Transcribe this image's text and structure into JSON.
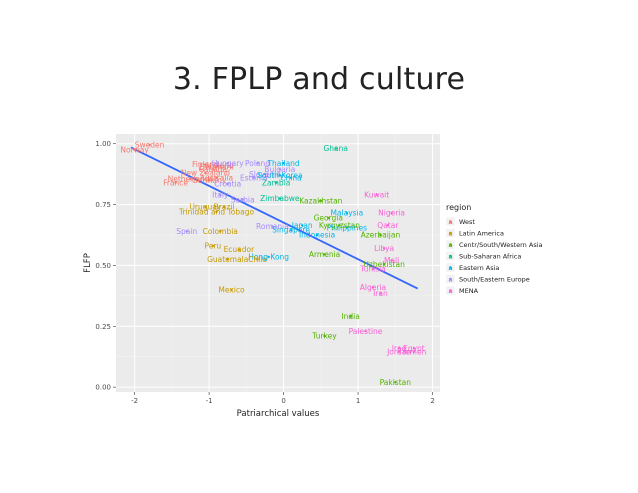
{
  "slide": {
    "title": "3. FPLP and culture"
  },
  "chart_data": {
    "type": "scatter",
    "xlabel": "Patriarchical values",
    "ylabel": "FLFP",
    "xlim": [
      -2.25,
      2.1
    ],
    "ylim": [
      -0.02,
      1.04
    ],
    "x_ticks": [
      -2,
      -1,
      0,
      1,
      2
    ],
    "y_ticks": [
      0.0,
      0.25,
      0.5,
      0.75,
      1.0
    ],
    "x_tick_labels": [
      "-2",
      "-1",
      "0",
      "1",
      "2"
    ],
    "y_tick_labels": [
      "0.00",
      "0.25",
      "0.50",
      "0.75",
      "1.00"
    ],
    "grid": true,
    "background": "#ebebeb",
    "legend": {
      "title": "region",
      "position": "right",
      "entries": [
        {
          "name": "West",
          "color": "#F8766D"
        },
        {
          "name": "Latin America",
          "color": "#C49A00"
        },
        {
          "name": "Centr/South/Western Asia",
          "color": "#53B400"
        },
        {
          "name": "Sub-Saharan Africa",
          "color": "#00C094"
        },
        {
          "name": "Eastern Asia",
          "color": "#00B6EB"
        },
        {
          "name": "South/Eastern Europe",
          "color": "#A58AFF"
        },
        {
          "name": "MENA",
          "color": "#FB61D7"
        }
      ]
    },
    "trend_line": {
      "x": [
        -2.05,
        1.8
      ],
      "y": [
        0.985,
        0.405
      ],
      "color": "#3366FF"
    },
    "points": [
      {
        "label": "Sweden",
        "region": "West",
        "x": -1.8,
        "y": 0.995
      },
      {
        "label": "Norway",
        "region": "West",
        "x": -2.0,
        "y": 0.975
      },
      {
        "label": "Finland",
        "region": "West",
        "x": -1.05,
        "y": 0.915
      },
      {
        "label": "Iceland",
        "region": "West",
        "x": -0.85,
        "y": 0.91
      },
      {
        "label": "Denmark",
        "region": "West",
        "x": -0.9,
        "y": 0.905
      },
      {
        "label": "Canada",
        "region": "West",
        "x": -0.95,
        "y": 0.895
      },
      {
        "label": "New Zealand",
        "region": "West",
        "x": -1.05,
        "y": 0.88
      },
      {
        "label": "Netherlands",
        "region": "West",
        "x": -1.25,
        "y": 0.855
      },
      {
        "label": "Australia",
        "region": "West",
        "x": -0.9,
        "y": 0.86
      },
      {
        "label": "Germany",
        "region": "West",
        "x": -1.0,
        "y": 0.85
      },
      {
        "label": "France",
        "region": "West",
        "x": -1.45,
        "y": 0.84
      },
      {
        "label": "Hungary",
        "region": "South/Eastern Europe",
        "x": -0.75,
        "y": 0.92
      },
      {
        "label": "Poland",
        "region": "South/Eastern Europe",
        "x": -0.35,
        "y": 0.92
      },
      {
        "label": "Bulgaria",
        "region": "South/Eastern Europe",
        "x": -0.05,
        "y": 0.895
      },
      {
        "label": "Slovenia",
        "region": "South/Eastern Europe",
        "x": -0.25,
        "y": 0.875
      },
      {
        "label": "Estonia",
        "region": "South/Eastern Europe",
        "x": -0.4,
        "y": 0.86
      },
      {
        "label": "Croatia",
        "region": "South/Eastern Europe",
        "x": -0.75,
        "y": 0.835
      },
      {
        "label": "Italy",
        "region": "South/Eastern Europe",
        "x": -0.85,
        "y": 0.79
      },
      {
        "label": "Spain",
        "region": "South/Eastern Europe",
        "x": -1.3,
        "y": 0.64
      },
      {
        "label": "Romania",
        "region": "South/Eastern Europe",
        "x": -0.15,
        "y": 0.66
      },
      {
        "label": "Serbia",
        "region": "South/Eastern Europe",
        "x": -0.55,
        "y": 0.77
      },
      {
        "label": "Thailand",
        "region": "Eastern Asia",
        "x": 0.0,
        "y": 0.92
      },
      {
        "label": "South Korea",
        "region": "Eastern Asia",
        "x": -0.05,
        "y": 0.87
      },
      {
        "label": "China",
        "region": "Eastern Asia",
        "x": 0.1,
        "y": 0.86
      },
      {
        "label": "Japan",
        "region": "Eastern Asia",
        "x": 0.25,
        "y": 0.665
      },
      {
        "label": "Singapore",
        "region": "Eastern Asia",
        "x": 0.1,
        "y": 0.645
      },
      {
        "label": "Hong Kong",
        "region": "Eastern Asia",
        "x": -0.2,
        "y": 0.535
      },
      {
        "label": "Malaysia",
        "region": "Eastern Asia",
        "x": 0.85,
        "y": 0.715
      },
      {
        "label": "Philippines",
        "region": "Eastern Asia",
        "x": 0.85,
        "y": 0.655
      },
      {
        "label": "Indonesia",
        "region": "Eastern Asia",
        "x": 0.45,
        "y": 0.625
      },
      {
        "label": "Ghana",
        "region": "Sub-Saharan Africa",
        "x": 0.7,
        "y": 0.98
      },
      {
        "label": "Zambia",
        "region": "Sub-Saharan Africa",
        "x": -0.1,
        "y": 0.84
      },
      {
        "label": "Zimbabwe",
        "region": "Sub-Saharan Africa",
        "x": -0.05,
        "y": 0.775
      },
      {
        "label": "Kazakhstan",
        "region": "Centr/South/Western Asia",
        "x": 0.5,
        "y": 0.765
      },
      {
        "label": "Georgia",
        "region": "Centr/South/Western Asia",
        "x": 0.6,
        "y": 0.695
      },
      {
        "label": "Kyrgyzstan",
        "region": "Centr/South/Western Asia",
        "x": 0.75,
        "y": 0.665
      },
      {
        "label": "Armenia",
        "region": "Centr/South/Western Asia",
        "x": 0.55,
        "y": 0.545
      },
      {
        "label": "Azerbaijan",
        "region": "Centr/South/Western Asia",
        "x": 1.3,
        "y": 0.625
      },
      {
        "label": "Uzbekistan",
        "region": "Centr/South/Western Asia",
        "x": 1.35,
        "y": 0.505
      },
      {
        "label": "India",
        "region": "Centr/South/Western Asia",
        "x": 0.9,
        "y": 0.29
      },
      {
        "label": "Turkey",
        "region": "Centr/South/Western Asia",
        "x": 0.55,
        "y": 0.21
      },
      {
        "label": "Pakistan",
        "region": "Centr/South/Western Asia",
        "x": 1.5,
        "y": 0.02
      },
      {
        "label": "Uruguay",
        "region": "Latin America",
        "x": -1.05,
        "y": 0.74
      },
      {
        "label": "Brazil",
        "region": "Latin America",
        "x": -0.8,
        "y": 0.74
      },
      {
        "label": "Trinidad and Tobago",
        "region": "Latin America",
        "x": -0.9,
        "y": 0.72
      },
      {
        "label": "Colombia",
        "region": "Latin America",
        "x": -0.85,
        "y": 0.64
      },
      {
        "label": "Peru",
        "region": "Latin America",
        "x": -0.95,
        "y": 0.58
      },
      {
        "label": "Ecuador",
        "region": "Latin America",
        "x": -0.6,
        "y": 0.565
      },
      {
        "label": "Chile",
        "region": "Latin America",
        "x": -0.35,
        "y": 0.525
      },
      {
        "label": "Guatemala",
        "region": "Latin America",
        "x": -0.75,
        "y": 0.525
      },
      {
        "label": "Mexico",
        "region": "Latin America",
        "x": -0.7,
        "y": 0.4
      },
      {
        "label": "Kuwait",
        "region": "MENA",
        "x": 1.25,
        "y": 0.79
      },
      {
        "label": "Nigeria",
        "region": "MENA",
        "x": 1.45,
        "y": 0.715
      },
      {
        "label": "Qatar",
        "region": "MENA",
        "x": 1.4,
        "y": 0.665
      },
      {
        "label": "Libya",
        "region": "MENA",
        "x": 1.35,
        "y": 0.57
      },
      {
        "label": "Mali",
        "region": "MENA",
        "x": 1.45,
        "y": 0.52
      },
      {
        "label": "Tunisia",
        "region": "MENA",
        "x": 1.2,
        "y": 0.485
      },
      {
        "label": "Algeria",
        "region": "MENA",
        "x": 1.2,
        "y": 0.41
      },
      {
        "label": "Iran",
        "region": "MENA",
        "x": 1.3,
        "y": 0.385
      },
      {
        "label": "Palestine",
        "region": "MENA",
        "x": 1.1,
        "y": 0.23
      },
      {
        "label": "Iraq",
        "region": "MENA",
        "x": 1.55,
        "y": 0.16
      },
      {
        "label": "Egypt",
        "region": "MENA",
        "x": 1.75,
        "y": 0.16
      },
      {
        "label": "Jordan",
        "region": "MENA",
        "x": 1.55,
        "y": 0.145
      },
      {
        "label": "Yemen",
        "region": "MENA",
        "x": 1.75,
        "y": 0.145
      }
    ]
  }
}
